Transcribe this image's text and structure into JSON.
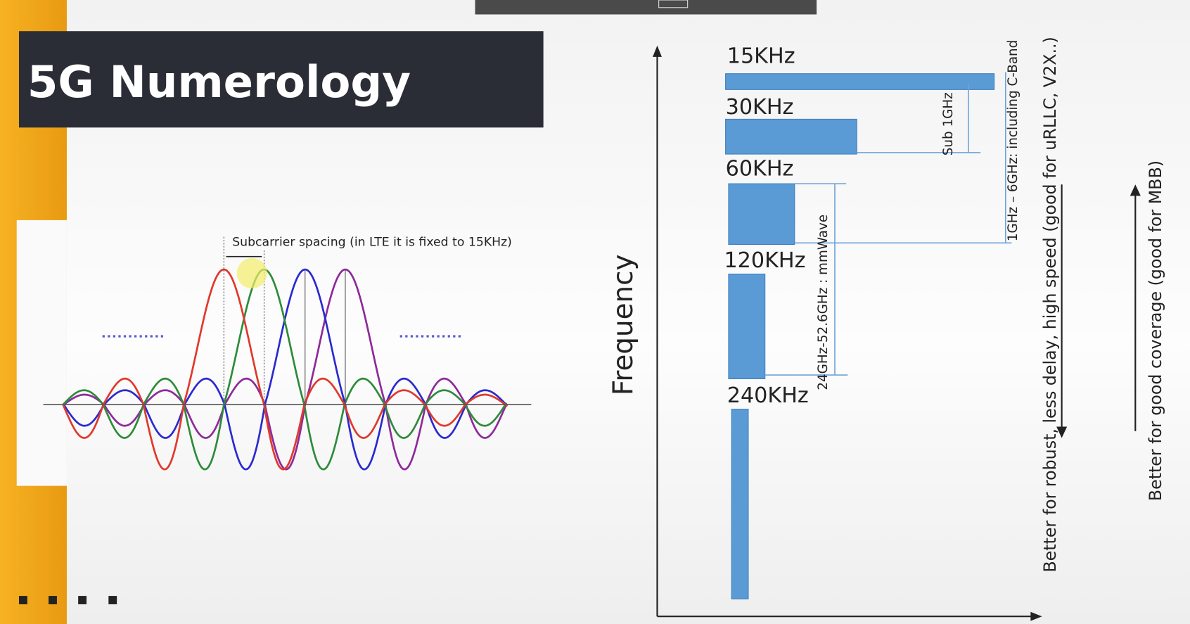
{
  "header": {
    "title": "5G Numerology"
  },
  "ofdm": {
    "annotation": "Subcarrier spacing (in LTE it is fixed to 15KHz)"
  },
  "numerology": {
    "axis_label": "Frequency",
    "spacings": [
      "15KHz",
      "30KHz",
      "60KHz",
      "120KHz",
      "240KHz"
    ],
    "bands": [
      "Sub 1GHz",
      "1GHz – 6GHz: including C-Band",
      "24GHz-52.6GHz : mmWave"
    ],
    "notes": [
      "Better for robust, less delay, high speed (good for uRLLC, V2X..)",
      "Better for good coverage (good for MBB)"
    ]
  }
}
